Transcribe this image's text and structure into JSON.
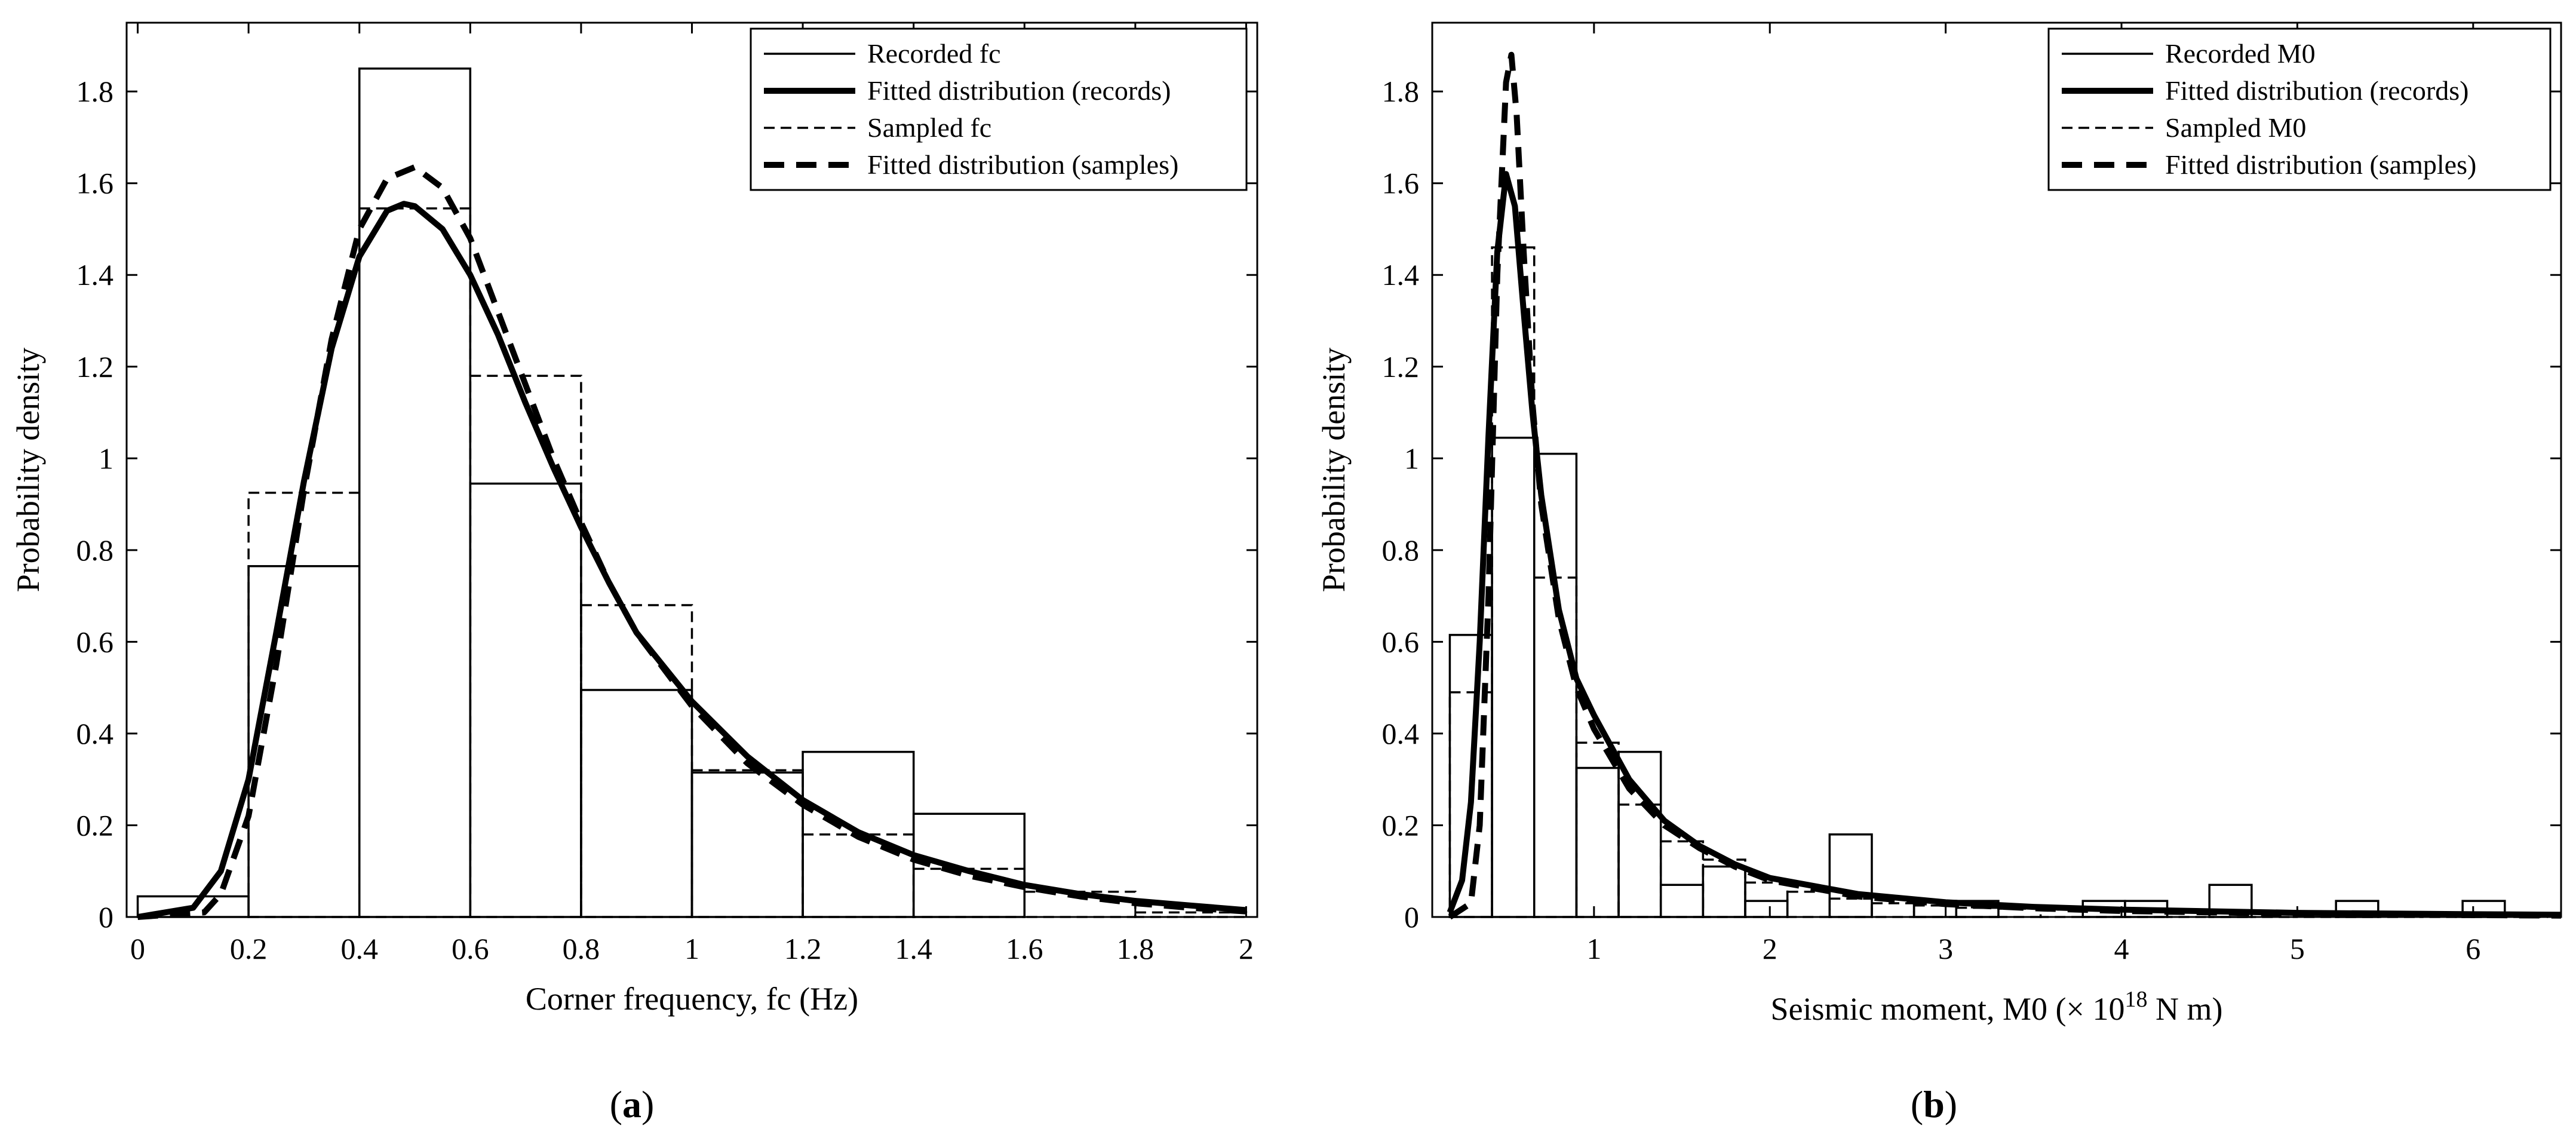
{
  "chart_data": [
    {
      "id": "a",
      "type": "histogram",
      "panel_label": "a",
      "xlabel": "Corner frequency, fc (Hz)",
      "ylabel": "Probability density",
      "xlim": [
        -0.02,
        2.02
      ],
      "ylim": [
        0,
        1.95
      ],
      "xticks": [
        0,
        0.2,
        0.4,
        0.6,
        0.8,
        1,
        1.2,
        1.4,
        1.6,
        1.8,
        2
      ],
      "xtick_labels": [
        "0",
        "0.2",
        "0.4",
        "0.6",
        "0.8",
        "1",
        "1.2",
        "1.4",
        "1.6",
        "1.8",
        "2"
      ],
      "yticks": [
        0,
        0.2,
        0.4,
        0.6,
        0.8,
        1,
        1.2,
        1.4,
        1.6,
        1.8
      ],
      "ytick_labels": [
        "0",
        "0.2",
        "0.4",
        "0.6",
        "0.8",
        "1",
        "1.2",
        "1.4",
        "1.6",
        "1.8"
      ],
      "legend": {
        "position": "top-right",
        "entries": [
          {
            "label": "Recorded fc",
            "style": "thin-solid"
          },
          {
            "label": "Fitted distribution (records)",
            "style": "thick-solid"
          },
          {
            "label": "Sampled fc",
            "style": "thin-dashed"
          },
          {
            "label": "Fitted distribution (samples)",
            "style": "thick-dashed"
          }
        ]
      },
      "histograms": [
        {
          "name": "Recorded fc",
          "style": "thin-solid",
          "bin_edges": [
            0,
            0.2,
            0.4,
            0.6,
            0.8,
            1.0,
            1.2,
            1.4,
            1.6
          ],
          "values": [
            0.045,
            0.765,
            1.85,
            0.945,
            0.495,
            0.315,
            0.36,
            0.225
          ]
        },
        {
          "name": "Sampled fc",
          "style": "thin-dashed",
          "bin_edges": [
            0,
            0.2,
            0.4,
            0.6,
            0.8,
            1.0,
            1.2,
            1.4,
            1.6,
            1.8,
            2.0
          ],
          "values": [
            0.0,
            0.925,
            1.545,
            1.18,
            0.68,
            0.32,
            0.18,
            0.105,
            0.055,
            0.01
          ]
        }
      ],
      "curves": [
        {
          "name": "Fitted distribution (records)",
          "style": "thick-solid",
          "x": [
            0,
            0.1,
            0.15,
            0.2,
            0.25,
            0.3,
            0.35,
            0.4,
            0.45,
            0.48,
            0.5,
            0.55,
            0.6,
            0.65,
            0.7,
            0.75,
            0.8,
            0.85,
            0.9,
            1.0,
            1.1,
            1.2,
            1.3,
            1.4,
            1.5,
            1.6,
            1.7,
            1.8,
            1.9,
            2.0
          ],
          "y": [
            0,
            0.02,
            0.1,
            0.3,
            0.62,
            0.95,
            1.24,
            1.44,
            1.54,
            1.555,
            1.55,
            1.5,
            1.4,
            1.27,
            1.12,
            0.98,
            0.85,
            0.73,
            0.62,
            0.47,
            0.35,
            0.255,
            0.185,
            0.135,
            0.1,
            0.07,
            0.05,
            0.035,
            0.025,
            0.015
          ]
        },
        {
          "name": "Fitted distribution (samples)",
          "style": "thick-dashed",
          "x": [
            0,
            0.12,
            0.15,
            0.2,
            0.25,
            0.3,
            0.35,
            0.4,
            0.45,
            0.5,
            0.55,
            0.6,
            0.65,
            0.7,
            0.75,
            0.8,
            0.85,
            0.9,
            1.0,
            1.1,
            1.2,
            1.3,
            1.4,
            1.5,
            1.6,
            1.7,
            1.8,
            1.9,
            2.0
          ],
          "y": [
            0,
            0.01,
            0.05,
            0.22,
            0.55,
            0.93,
            1.26,
            1.5,
            1.61,
            1.635,
            1.59,
            1.48,
            1.32,
            1.16,
            1.0,
            0.86,
            0.73,
            0.62,
            0.46,
            0.335,
            0.245,
            0.175,
            0.125,
            0.09,
            0.065,
            0.045,
            0.03,
            0.02,
            0.012
          ]
        }
      ]
    },
    {
      "id": "b",
      "type": "histogram",
      "panel_label": "b",
      "xlabel": "Seismic moment, M0 (× 10",
      "xlabel_superscript": "18",
      "xlabel_suffix": " N m)",
      "ylabel": "Probability density",
      "xlim": [
        0.08,
        6.5
      ],
      "ylim": [
        0,
        1.95
      ],
      "xticks": [
        1,
        2,
        3,
        4,
        5,
        6
      ],
      "xtick_labels": [
        "1",
        "2",
        "3",
        "4",
        "5",
        "6"
      ],
      "yticks": [
        0,
        0.2,
        0.4,
        0.6,
        0.8,
        1,
        1.2,
        1.4,
        1.6,
        1.8
      ],
      "ytick_labels": [
        "0",
        "0.2",
        "0.4",
        "0.6",
        "0.8",
        "1",
        "1.2",
        "1.4",
        "1.6",
        "1.8"
      ],
      "legend": {
        "position": "top-right",
        "entries": [
          {
            "label": "Recorded M0",
            "style": "thin-solid"
          },
          {
            "label": "Fitted distribution (records)",
            "style": "thick-solid"
          },
          {
            "label": "Sampled M0",
            "style": "thin-dashed"
          },
          {
            "label": "Fitted distribution (samples)",
            "style": "thick-dashed"
          }
        ]
      },
      "histograms": [
        {
          "name": "Recorded M0",
          "style": "thin-solid",
          "bin_edges": [
            0.18,
            0.42,
            0.66,
            0.9,
            1.14,
            1.38,
            1.62,
            1.86,
            2.1,
            2.34,
            2.58,
            2.82,
            3.06,
            3.3,
            3.54,
            3.78,
            4.02,
            4.26,
            4.5,
            4.74,
            4.98,
            5.22,
            5.46,
            5.7,
            5.94,
            6.18,
            6.42
          ],
          "values": [
            0.615,
            1.045,
            1.01,
            0.325,
            0.36,
            0.07,
            0.11,
            0.035,
            0.0,
            0.18,
            0.0,
            0.035,
            0.035,
            0.0,
            0.0,
            0.035,
            0.035,
            0.0,
            0.07,
            0.0,
            0.0,
            0.035,
            0.0,
            0.0,
            0.035,
            0.0
          ]
        },
        {
          "name": "Sampled M0",
          "style": "thin-dashed",
          "bin_edges": [
            0.18,
            0.42,
            0.66,
            0.9,
            1.14,
            1.38,
            1.62,
            1.86,
            2.1,
            2.34,
            2.58,
            2.82,
            3.06,
            3.3,
            3.54,
            3.78,
            4.02,
            4.26,
            4.5,
            4.74,
            4.98,
            5.22,
            5.46,
            5.7,
            5.94,
            6.18,
            6.42
          ],
          "values": [
            0.49,
            1.46,
            0.74,
            0.38,
            0.245,
            0.165,
            0.125,
            0.075,
            0.055,
            0.04,
            0.03,
            0.025,
            0.02,
            0.018,
            0.016,
            0.014,
            0.012,
            0.01,
            0.009,
            0.008,
            0.007,
            0.006,
            0.005,
            0.005,
            0.004,
            0.004
          ]
        }
      ],
      "curves": [
        {
          "name": "Fitted distribution (records)",
          "style": "thick-solid",
          "x": [
            0.18,
            0.25,
            0.3,
            0.35,
            0.4,
            0.45,
            0.5,
            0.55,
            0.6,
            0.65,
            0.7,
            0.8,
            0.9,
            1.0,
            1.2,
            1.4,
            1.6,
            1.8,
            2.0,
            2.5,
            3.0,
            3.5,
            4.0,
            5.0,
            6.0,
            6.5
          ],
          "y": [
            0.01,
            0.08,
            0.25,
            0.6,
            1.05,
            1.45,
            1.62,
            1.55,
            1.32,
            1.1,
            0.92,
            0.67,
            0.52,
            0.44,
            0.3,
            0.21,
            0.155,
            0.115,
            0.085,
            0.05,
            0.032,
            0.022,
            0.016,
            0.009,
            0.006,
            0.005
          ]
        },
        {
          "name": "Fitted distribution (samples)",
          "style": "thick-dashed",
          "x": [
            0.18,
            0.3,
            0.35,
            0.4,
            0.45,
            0.5,
            0.53,
            0.56,
            0.6,
            0.65,
            0.7,
            0.8,
            0.9,
            1.0,
            1.2,
            1.4,
            1.6,
            1.8,
            2.0,
            2.5,
            3.0,
            3.5,
            4.0,
            5.0,
            6.0,
            6.5
          ],
          "y": [
            0.0,
            0.03,
            0.2,
            0.7,
            1.4,
            1.82,
            1.88,
            1.75,
            1.45,
            1.12,
            0.9,
            0.65,
            0.5,
            0.41,
            0.28,
            0.2,
            0.15,
            0.11,
            0.08,
            0.045,
            0.028,
            0.019,
            0.013,
            0.007,
            0.004,
            0.003
          ]
        }
      ]
    }
  ]
}
